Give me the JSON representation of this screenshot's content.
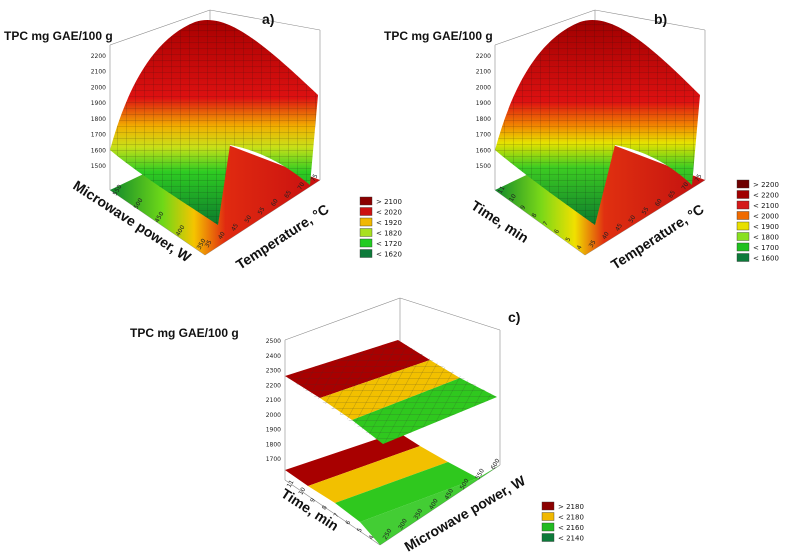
{
  "chart_data": [
    {
      "panel": "a)",
      "type": "surface3d",
      "title": "TPC mg GAE/100 g",
      "xlabel": "Temperature, °C",
      "ylabel": "Microwave power, W",
      "zlabel": "TPC mg GAE/100 g",
      "zticks": [
        "2200",
        "2100",
        "2000",
        "1900",
        "1800",
        "1700",
        "1600",
        "1500"
      ],
      "xticks": [
        "35",
        "40",
        "45",
        "50",
        "55",
        "60",
        "65",
        "70",
        "75"
      ],
      "yticks": [
        "350",
        "400",
        "450",
        "500",
        "550"
      ],
      "zlim": [
        1500,
        2200
      ],
      "peak_value": 2180,
      "low_value": 1540,
      "legend": [
        "> 2100",
        "< 2020",
        "< 1920",
        "< 1820",
        "< 1720",
        "< 1620"
      ],
      "colors": [
        "#8b0000",
        "#cc1111",
        "#f0b800",
        "#a8e020",
        "#22cc22",
        "#0d7a3a"
      ]
    },
    {
      "panel": "b)",
      "type": "surface3d",
      "title": "TPC mg GAE/100 g",
      "xlabel": "Temperature, °C",
      "ylabel": "Time, min",
      "zlabel": "TPC mg GAE/100 g",
      "zticks": [
        "2200",
        "2100",
        "2000",
        "1900",
        "1800",
        "1700",
        "1600",
        "1500"
      ],
      "xticks": [
        "35",
        "40",
        "45",
        "50",
        "55",
        "60",
        "65",
        "70",
        "75"
      ],
      "yticks": [
        "4",
        "5",
        "6",
        "7",
        "8",
        "9",
        "10",
        "11"
      ],
      "zlim": [
        1500,
        2200
      ],
      "peak_value": 2190,
      "low_value": 1560,
      "legend": [
        "> 2200",
        "< 2200",
        "< 2100",
        "< 2000",
        "< 1900",
        "< 1800",
        "< 1700",
        "< 1600"
      ],
      "colors": [
        "#6e0000",
        "#a00000",
        "#d41a1a",
        "#f06a00",
        "#e8e000",
        "#88e020",
        "#20c020",
        "#0d7a3a"
      ]
    },
    {
      "panel": "c)",
      "type": "surface3d",
      "title": "TPC mg GAE/100 g",
      "xlabel": "Microwave power, W",
      "ylabel": "Time, min",
      "zlabel": "TPC mg GAE/100 g",
      "zticks": [
        "2500",
        "2400",
        "2300",
        "2200",
        "2100",
        "2000",
        "1900",
        "1800",
        "1700"
      ],
      "xticks": [
        "250",
        "300",
        "350",
        "400",
        "450",
        "500",
        "550",
        "600"
      ],
      "yticks": [
        "4",
        "5",
        "6",
        "7",
        "8",
        "9",
        "10",
        "11"
      ],
      "zlim": [
        1700,
        2500
      ],
      "plane_value": 2170,
      "legend": [
        "> 2180",
        "< 2180",
        "< 2160",
        "< 2140"
      ],
      "colors": [
        "#8b0000",
        "#f0b800",
        "#22bb22",
        "#0d7a3a"
      ]
    }
  ]
}
